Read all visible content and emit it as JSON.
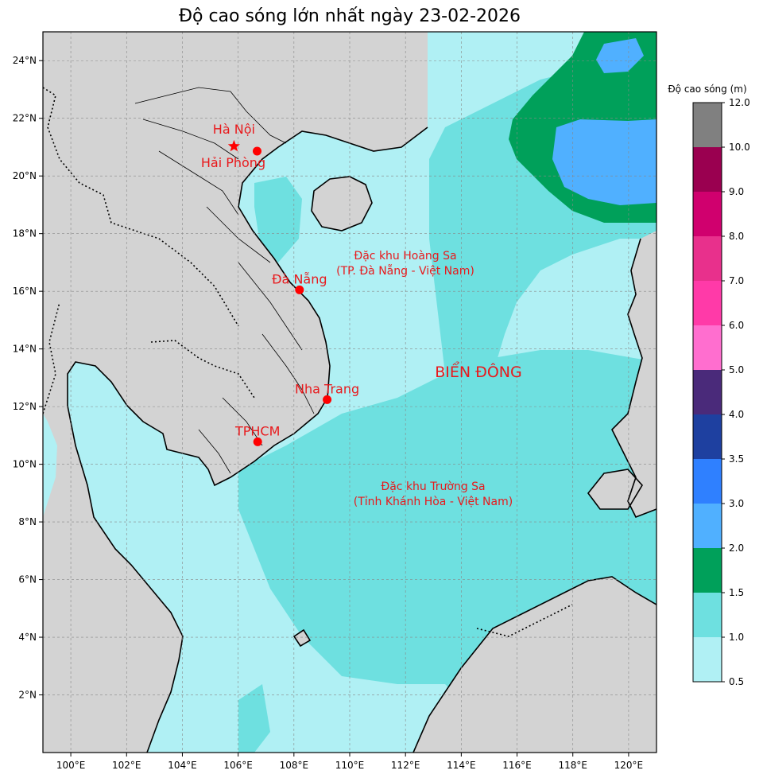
{
  "title": "Độ cao sóng lớn nhất ngày 23-02-2026",
  "map": {
    "lon_range": [
      99,
      121
    ],
    "lat_range": [
      0,
      25
    ],
    "lon_ticks": [
      "100°E",
      "102°E",
      "104°E",
      "106°E",
      "108°E",
      "110°E",
      "112°E",
      "114°E",
      "116°E",
      "118°E",
      "120°E"
    ],
    "lat_ticks": [
      "2°N",
      "4°N",
      "6°N",
      "8°N",
      "10°N",
      "12°N",
      "14°N",
      "16°N",
      "18°N",
      "20°N",
      "22°N",
      "24°N"
    ],
    "colors": {
      "land": "#d3d3d3",
      "ocean_low": "#b0f0f4",
      "ocean_mid": "#6ee0e0",
      "ocean_green": "#00a05a",
      "ocean_blue": "#50b0ff",
      "marker": "#ff0000"
    }
  },
  "cities": [
    {
      "name": "Hà Nội",
      "lon": 105.85,
      "lat": 21.03,
      "marker": "star"
    },
    {
      "name": "Hải Phòng",
      "lon": 106.68,
      "lat": 20.86,
      "marker": "dot"
    },
    {
      "name": "Đà Nẵng",
      "lon": 108.2,
      "lat": 16.05,
      "marker": "dot"
    },
    {
      "name": "Nha Trang",
      "lon": 109.19,
      "lat": 12.24,
      "marker": "dot"
    },
    {
      "name": "TPHCM",
      "lon": 106.7,
      "lat": 10.78,
      "marker": "dot"
    }
  ],
  "regions": [
    {
      "line1": "Đặc khu Hoàng Sa",
      "line2": "(TP. Đà Nẵng - Việt Nam)"
    },
    {
      "line1": "Đặc khu Trường Sa",
      "line2": "(Tỉnh Khánh Hòa - Việt Nam)"
    }
  ],
  "sea_name": "BIỂN ĐÔNG",
  "colorbar": {
    "title": "Độ cao sóng (m)",
    "levels": [
      "0.5",
      "1.0",
      "1.5",
      "2.0",
      "3.0",
      "3.5",
      "4.0",
      "5.0",
      "6.0",
      "7.0",
      "8.0",
      "9.0",
      "10.0",
      "12.0"
    ],
    "colors": [
      "#b0f0f4",
      "#6ee0e0",
      "#00a05a",
      "#50b0ff",
      "#2f80ff",
      "#1e40a0",
      "#4a2a7a",
      "#ff6ecf",
      "#ff3aa8",
      "#e8308c",
      "#d0006e",
      "#9a0050",
      "#808080"
    ]
  }
}
